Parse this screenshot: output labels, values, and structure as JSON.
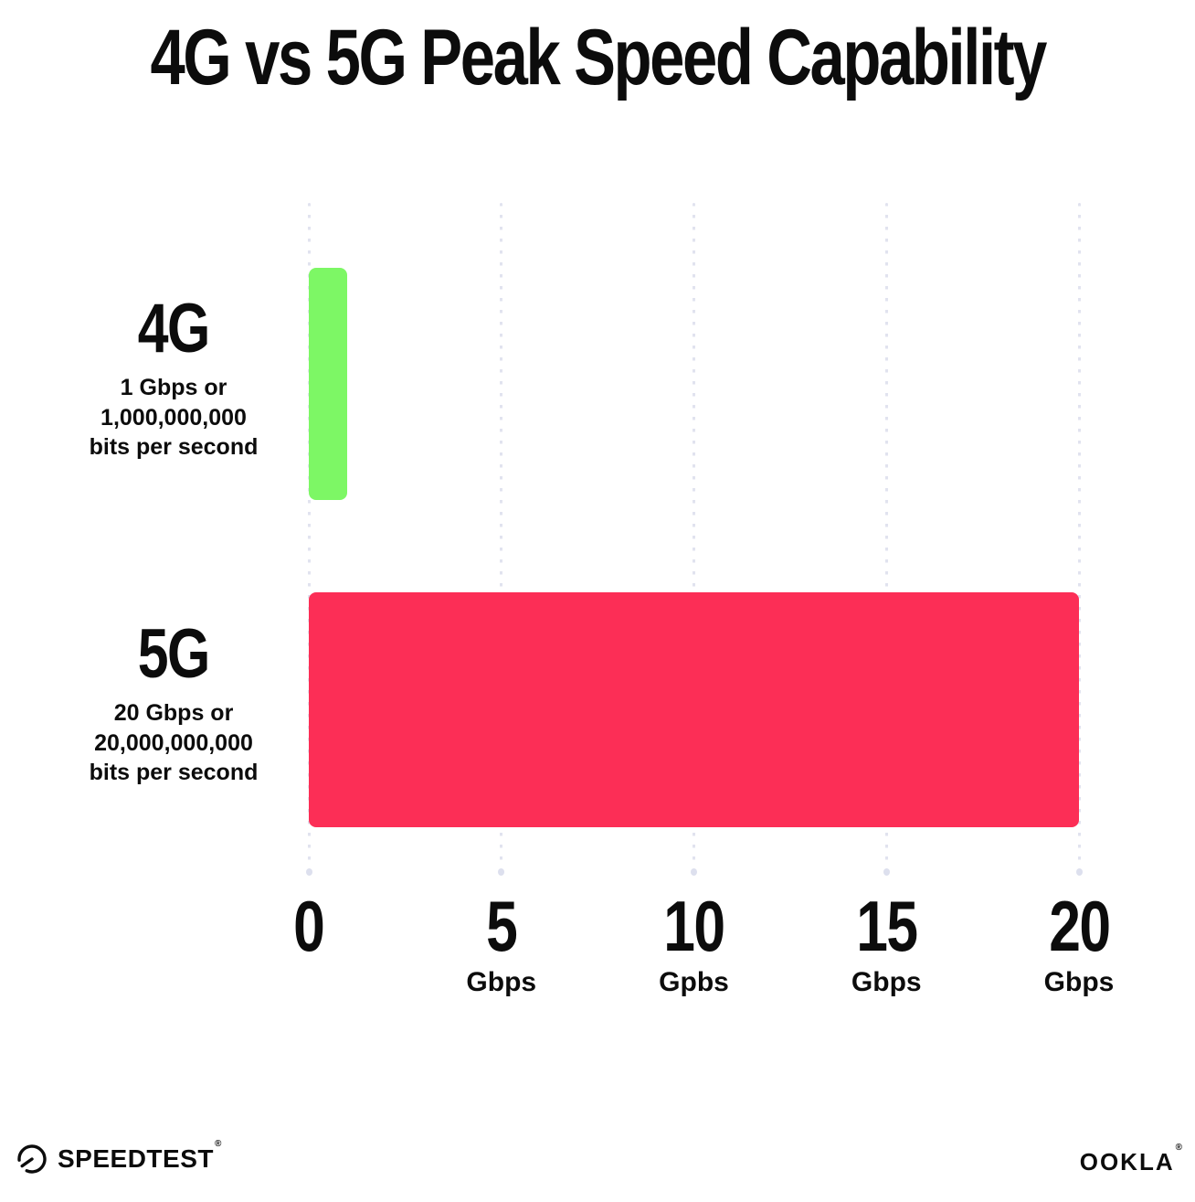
{
  "title": "4G vs 5G Peak Speed Capability",
  "chart_data": {
    "type": "bar",
    "orientation": "horizontal",
    "title": "4G vs 5G Peak Speed Capability",
    "categories": [
      "4G",
      "5G"
    ],
    "values": [
      1,
      20
    ],
    "bar_colors": [
      "#7df765",
      "#fc2e56"
    ],
    "xlim": [
      0,
      20
    ],
    "grid": "vertical dotted gridlines at ticks",
    "legend": "none",
    "rows": [
      {
        "label": "4G",
        "desc_line1": "1 Gbps or",
        "desc_line2": "1,000,000,000",
        "desc_line3": "bits per second",
        "value": 1
      },
      {
        "label": "5G",
        "desc_line1": "20 Gbps or",
        "desc_line2": "20,000,000,000",
        "desc_line3": "bits per second",
        "value": 20
      }
    ],
    "x_ticks": [
      {
        "label": "0",
        "unit": ""
      },
      {
        "label": "5",
        "unit": "Gbps"
      },
      {
        "label": "10",
        "unit": "Gpbs"
      },
      {
        "label": "15",
        "unit": "Gbps"
      },
      {
        "label": "20",
        "unit": "Gbps"
      }
    ]
  },
  "colors": {
    "bar_4g_green": "#7df765",
    "bar_5g_pink": "#fc2e56",
    "gridline_dot": "#e1e3ef",
    "text": "#0c0c0c",
    "background": "#ffffff"
  },
  "footer": {
    "speedtest_label": "SPEEDTEST",
    "speedtest_mark": "®",
    "ookla_label": "OOKLA",
    "ookla_mark": "®",
    "gauge_icon": "speedometer-gauge"
  }
}
